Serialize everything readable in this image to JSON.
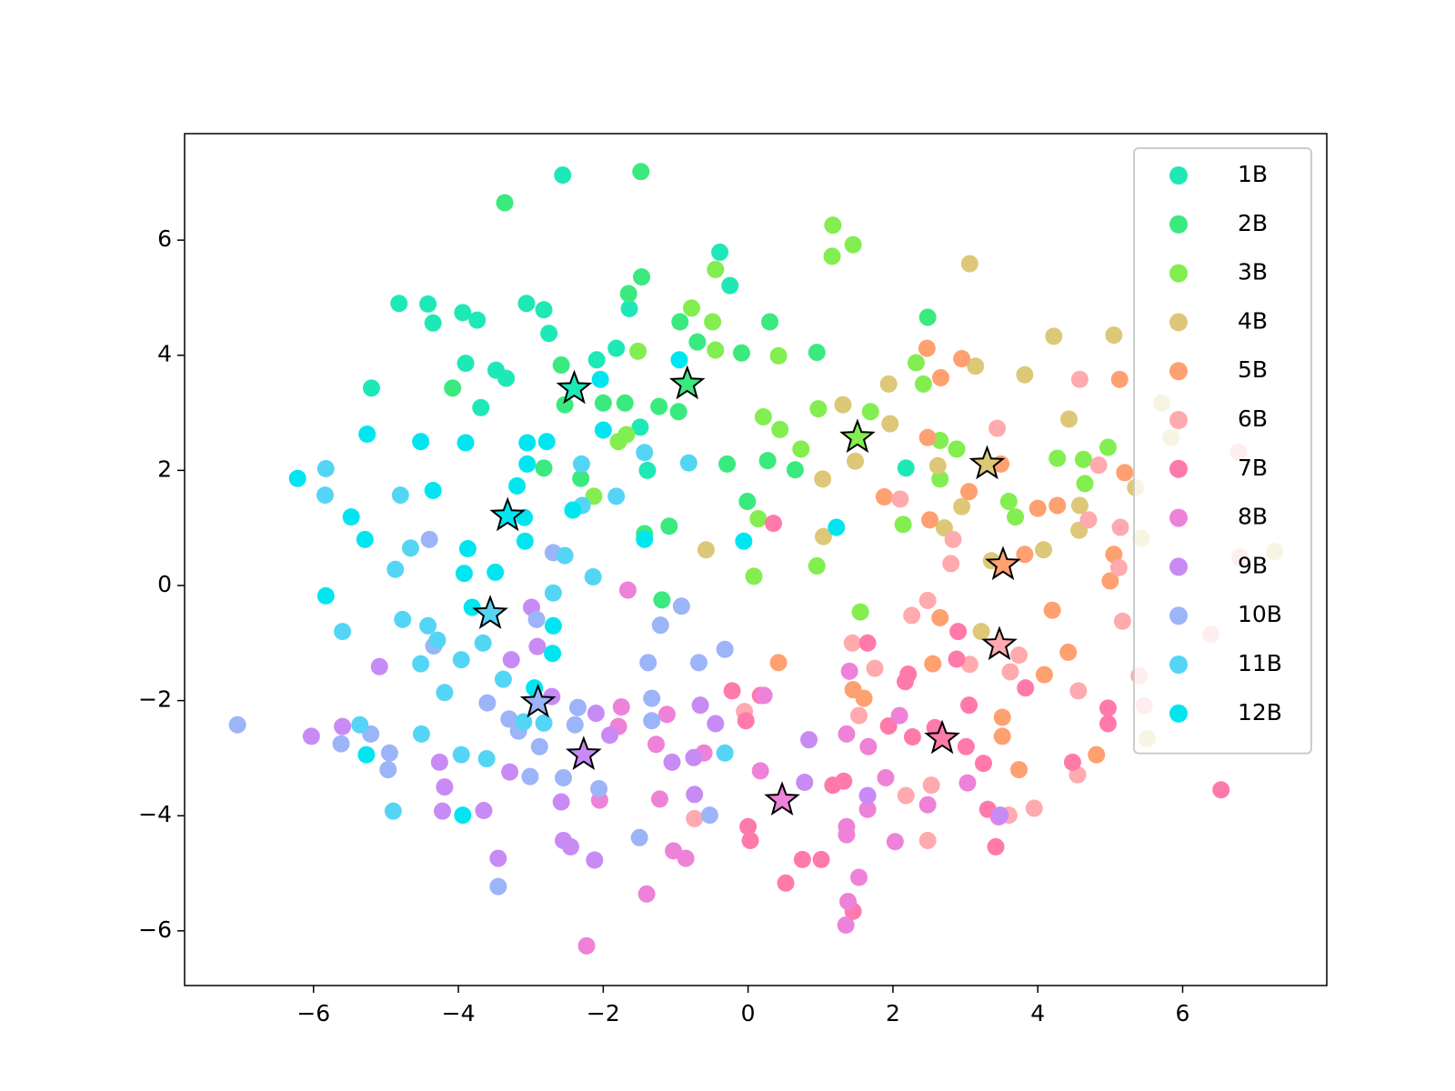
{
  "chart_data": {
    "type": "scatter",
    "xlim": [
      -7.78,
      7.99
    ],
    "ylim": [
      -6.95,
      7.85
    ],
    "xticks": [
      {
        "value": -6,
        "label": "−6"
      },
      {
        "value": -4,
        "label": "−4"
      },
      {
        "value": -2,
        "label": "−2"
      },
      0,
      2,
      4,
      6
    ],
    "yticks": [
      {
        "value": -6,
        "label": "−6"
      },
      {
        "value": -4,
        "label": "−4"
      },
      {
        "value": -2,
        "label": "−2"
      },
      0,
      2,
      4,
      6
    ],
    "grid": false,
    "legend": "upper right",
    "series": [
      {
        "name": "1B",
        "color": "#1ee9b6",
        "x": [
          -2.56,
          -4.82,
          -4.42,
          -4.35,
          -3.94,
          -3.74,
          -3.06,
          -2.82,
          -2.75,
          -3.9,
          -3.48,
          -3.34,
          -3.69,
          -5.2,
          -1.64,
          -1.82,
          -2.09,
          -0.39,
          -0.25,
          -1.49,
          -1.39,
          2.18
        ],
        "values": [
          7.13,
          4.9,
          4.89,
          4.56,
          4.74,
          4.61,
          4.9,
          4.79,
          4.38,
          3.86,
          3.74,
          3.6,
          3.09,
          3.43,
          4.81,
          4.12,
          3.92,
          5.79,
          5.21,
          2.75,
          2.0,
          2.04
        ],
        "centroid": {
          "x": -2.4,
          "y": 3.42
        }
      },
      {
        "name": "2B",
        "color": "#3aea7f",
        "x": [
          -1.48,
          -3.36,
          -1.47,
          -1.65,
          -0.94,
          -0.7,
          0.3,
          -0.09,
          0.95,
          -2.58,
          -2.53,
          -2.31,
          -2.82,
          -2.0,
          -1.7,
          -1.23,
          -0.96,
          -0.29,
          0.27,
          0.65,
          -0.01,
          -1.09,
          -1.43,
          -1.19,
          -4.08,
          2.48
        ],
        "values": [
          7.19,
          6.65,
          5.36,
          5.07,
          4.58,
          4.23,
          4.58,
          4.04,
          4.05,
          3.83,
          3.14,
          1.86,
          2.04,
          3.17,
          3.17,
          3.11,
          3.02,
          2.11,
          2.17,
          2.01,
          1.46,
          1.03,
          0.9,
          -0.25,
          3.43,
          4.66
        ],
        "centroid": {
          "x": -0.84,
          "y": 3.5
        }
      },
      {
        "name": "3B",
        "color": "#82ee50",
        "x": [
          -0.45,
          -0.78,
          -0.49,
          -0.45,
          0.42,
          -1.52,
          1.17,
          1.16,
          1.45,
          0.21,
          0.44,
          0.73,
          0.97,
          1.69,
          2.32,
          2.42,
          2.65,
          2.88,
          2.65,
          2.14,
          3.6,
          3.69,
          4.63,
          4.27,
          4.65,
          4.97,
          0.08,
          0.95,
          1.55,
          0.14,
          -2.13,
          -1.79,
          -1.68
        ],
        "values": [
          5.49,
          4.82,
          4.58,
          4.09,
          3.99,
          4.07,
          6.26,
          5.72,
          5.92,
          2.93,
          2.71,
          2.37,
          3.07,
          3.02,
          3.87,
          3.5,
          2.52,
          2.37,
          1.85,
          1.06,
          1.46,
          1.19,
          2.19,
          2.21,
          1.77,
          2.4,
          0.16,
          0.34,
          -0.46,
          1.16,
          1.55,
          2.5,
          2.62
        ],
        "centroid": {
          "x": 1.51,
          "y": 2.57
        }
      },
      {
        "name": "4B",
        "color": "#dcc878",
        "x": [
          3.06,
          4.22,
          5.05,
          3.82,
          3.14,
          1.94,
          1.31,
          1.96,
          1.48,
          1.03,
          2.62,
          2.95,
          2.71,
          1.04,
          -0.58,
          4.43,
          4.58,
          4.57,
          4.08,
          3.22,
          3.36,
          5.35,
          5.51,
          5.71,
          5.84,
          5.43,
          7.27
        ],
        "values": [
          5.59,
          4.33,
          4.35,
          3.66,
          3.81,
          3.5,
          3.14,
          2.81,
          2.16,
          1.85,
          2.08,
          1.37,
          1.0,
          0.85,
          0.62,
          2.89,
          1.39,
          0.96,
          0.62,
          -0.8,
          0.43,
          1.7,
          -2.66,
          3.17,
          2.57,
          0.82,
          0.59
        ],
        "centroid": {
          "x": 3.3,
          "y": 2.11
        }
      },
      {
        "name": "5B",
        "color": "#ffa070",
        "x": [
          2.47,
          2.95,
          2.66,
          2.48,
          3.05,
          3.49,
          1.88,
          2.51,
          4.0,
          4.27,
          3.82,
          5.13,
          5.05,
          5.0,
          5.2,
          4.2,
          4.42,
          4.09,
          2.65,
          2.55,
          3.51,
          3.51,
          3.74,
          4.81,
          0.42,
          1.45,
          1.6
        ],
        "values": [
          4.12,
          3.94,
          3.61,
          2.57,
          1.63,
          2.11,
          1.54,
          1.14,
          1.34,
          1.39,
          0.54,
          3.58,
          0.54,
          0.08,
          1.96,
          -0.43,
          -1.16,
          -1.55,
          -0.56,
          -1.36,
          -2.29,
          -2.62,
          -3.2,
          -2.94,
          -1.34,
          -1.81,
          -1.96
        ],
        "centroid": {
          "x": 3.52,
          "y": 0.36
        }
      },
      {
        "name": "6B",
        "color": "#ffaaae",
        "x": [
          4.58,
          3.44,
          4.84,
          4.7,
          2.1,
          2.83,
          2.8,
          5.14,
          5.12,
          5.17,
          2.26,
          2.48,
          3.06,
          3.62,
          3.74,
          4.56,
          4.55,
          3.95,
          3.6,
          1.75,
          1.44,
          1.53,
          2.18,
          2.48,
          2.53,
          -0.05,
          -0.74,
          6.77,
          6.79,
          6.39,
          5.4,
          5.47
        ],
        "values": [
          3.58,
          2.73,
          2.09,
          1.14,
          1.5,
          0.8,
          0.38,
          1.01,
          0.31,
          -0.62,
          -0.52,
          -0.26,
          -1.37,
          -1.5,
          -1.21,
          -1.83,
          -3.29,
          -3.87,
          -3.99,
          -1.44,
          -1.0,
          -2.26,
          -3.65,
          -4.43,
          -3.47,
          -2.19,
          -4.05,
          2.32,
          0.49,
          -0.85,
          -1.57,
          -2.09
        ],
        "centroid": {
          "x": 3.47,
          "y": -1.03
        }
      },
      {
        "name": "7B",
        "color": "#ff7aaa",
        "x": [
          0.35,
          -0.22,
          0.17,
          -0.03,
          0.0,
          0.03,
          0.52,
          0.75,
          1.01,
          1.17,
          1.32,
          1.65,
          2.17,
          2.21,
          1.94,
          2.27,
          2.58,
          3.01,
          3.05,
          3.25,
          3.31,
          3.42,
          2.88,
          2.9,
          3.83,
          4.97,
          4.97,
          4.48,
          6.53,
          1.45
        ],
        "values": [
          1.08,
          -1.83,
          -1.91,
          -2.35,
          -4.19,
          -4.43,
          -5.17,
          -4.76,
          -4.76,
          -3.47,
          -3.4,
          -1.0,
          -1.67,
          -1.54,
          -2.44,
          -2.63,
          -2.47,
          -2.8,
          -2.08,
          -3.09,
          -3.89,
          -4.54,
          -1.28,
          -0.8,
          -1.78,
          -2.13,
          -2.4,
          -3.07,
          -3.55,
          -5.66
        ],
        "centroid": {
          "x": 2.68,
          "y": -2.66
        }
      },
      {
        "name": "8B",
        "color": "#ee82d8",
        "x": [
          -2.23,
          -2.05,
          -1.75,
          -1.79,
          -1.27,
          -1.12,
          -1.22,
          -1.03,
          -0.86,
          -1.4,
          -0.61,
          0.17,
          0.22,
          1.36,
          1.36,
          1.53,
          1.38,
          1.35,
          1.65,
          2.03,
          1.9,
          2.09,
          2.48,
          3.46,
          3.03,
          1.4,
          1.66,
          1.36,
          -1.66
        ],
        "values": [
          -6.26,
          -3.73,
          -2.11,
          -2.45,
          -2.76,
          -2.24,
          -3.71,
          -4.61,
          -4.74,
          -5.36,
          -2.91,
          -3.22,
          -1.91,
          -4.19,
          -4.33,
          -5.07,
          -5.49,
          -5.9,
          -3.89,
          -4.45,
          -3.34,
          -2.26,
          -3.81,
          -4.02,
          -3.43,
          -1.49,
          -2.8,
          -2.58,
          -0.08
        ],
        "centroid": {
          "x": 0.47,
          "y": -3.73
        }
      },
      {
        "name": "9B",
        "color": "#c88af5",
        "x": [
          -6.03,
          -5.6,
          -5.09,
          -4.26,
          -4.19,
          -4.22,
          -3.65,
          -3.45,
          -3.29,
          -2.99,
          -2.91,
          -2.71,
          -2.58,
          -2.55,
          -2.45,
          -2.12,
          -2.1,
          -1.91,
          -1.05,
          -0.74,
          -0.66,
          -0.45,
          -0.75,
          0.78,
          0.84,
          1.65,
          3.48,
          -3.27
        ],
        "values": [
          -2.62,
          -2.45,
          -1.41,
          -3.07,
          -3.5,
          -3.92,
          -3.91,
          -4.74,
          -3.24,
          -0.38,
          -1.06,
          -1.93,
          -3.76,
          -4.43,
          -4.54,
          -4.77,
          -2.22,
          -2.6,
          -3.07,
          -3.63,
          -2.08,
          -2.4,
          -2.99,
          -3.42,
          -2.68,
          -3.65,
          -3.99,
          -1.29
        ],
        "centroid": {
          "x": -2.27,
          "y": -2.94
        }
      },
      {
        "name": "10B",
        "color": "#9cb4f8",
        "x": [
          -7.05,
          -5.62,
          -5.21,
          -4.95,
          -4.97,
          -4.4,
          -4.34,
          -3.45,
          -3.6,
          -3.3,
          -3.17,
          -3.01,
          -2.88,
          -2.55,
          -2.39,
          -2.35,
          -2.06,
          -1.5,
          -1.38,
          -1.33,
          -1.33,
          -1.21,
          -0.92,
          -0.68,
          -0.53,
          -0.32,
          -2.69,
          -2.92
        ],
        "values": [
          -2.42,
          -2.75,
          -2.58,
          -2.91,
          -3.2,
          0.8,
          -1.05,
          -5.23,
          -2.04,
          -2.32,
          -2.53,
          -3.32,
          -2.8,
          -3.34,
          -2.42,
          -2.12,
          -3.53,
          -4.38,
          -1.34,
          -1.96,
          -2.35,
          -0.69,
          -0.36,
          -1.34,
          -3.99,
          -1.11,
          0.57,
          -0.59
        ],
        "centroid": {
          "x": -2.9,
          "y": -2.03
        }
      },
      {
        "name": "11B",
        "color": "#55d5f5",
        "x": [
          -5.83,
          -5.84,
          -5.6,
          -5.36,
          -4.8,
          -4.87,
          -4.77,
          -4.66,
          -4.42,
          -4.29,
          -4.52,
          -4.51,
          -4.9,
          -4.19,
          -3.96,
          -3.96,
          -3.61,
          -3.66,
          -3.38,
          -2.69,
          -2.53,
          -2.14,
          -2.3,
          -2.29,
          -1.82,
          -1.43,
          -0.82,
          -0.32,
          -3.1,
          -2.82
        ],
        "values": [
          2.03,
          1.57,
          -0.8,
          -2.42,
          1.57,
          0.28,
          -0.59,
          0.65,
          -0.7,
          -0.95,
          -1.36,
          -2.58,
          -3.92,
          -1.86,
          -1.29,
          -2.94,
          -3.01,
          -1.0,
          -1.63,
          -0.13,
          0.52,
          0.15,
          2.11,
          1.39,
          1.55,
          2.31,
          2.13,
          -2.91,
          -2.37,
          -2.39
        ],
        "centroid": {
          "x": -3.56,
          "y": -0.49
        }
      },
      {
        "name": "12B",
        "color": "#00e6f0",
        "x": [
          -6.22,
          -5.83,
          -5.48,
          -5.29,
          -5.26,
          -4.52,
          -4.35,
          -3.9,
          -3.87,
          -3.92,
          -3.49,
          -3.19,
          -3.05,
          -3.05,
          -2.78,
          -3.08,
          -3.09,
          -2.69,
          -2.7,
          -2.42,
          -2.04,
          -2.0,
          -0.95,
          -1.43,
          -0.06,
          1.22,
          -3.94,
          -5.27,
          -3.81,
          -2.95
        ],
        "values": [
          1.86,
          -0.18,
          1.19,
          0.8,
          2.63,
          2.5,
          1.65,
          2.48,
          0.64,
          0.21,
          0.23,
          1.73,
          2.11,
          2.48,
          2.5,
          0.77,
          1.18,
          -0.7,
          -1.18,
          1.31,
          3.58,
          2.7,
          3.92,
          0.8,
          0.77,
          1.01,
          -3.99,
          -2.94,
          -0.38,
          -1.78
        ],
        "centroid": {
          "x": -3.32,
          "y": 1.21
        }
      }
    ]
  }
}
